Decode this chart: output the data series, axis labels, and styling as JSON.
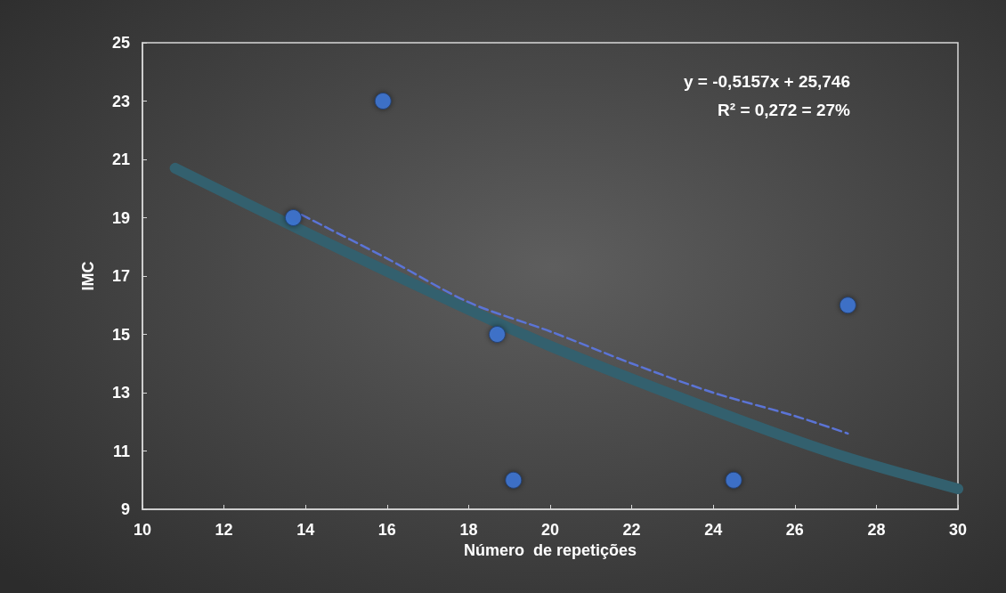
{
  "chart_data": {
    "type": "scatter",
    "xlabel": "Número  de repetições",
    "ylabel": "IMC",
    "xlim": [
      10,
      30
    ],
    "xticks": [
      10,
      12,
      14,
      16,
      18,
      20,
      22,
      24,
      26,
      28,
      30
    ],
    "ylim": [
      9,
      25
    ],
    "yticks": [
      9,
      11,
      13,
      15,
      17,
      19,
      21,
      23,
      25
    ],
    "grid": false,
    "annotations": [
      "y = -0,5157x + 25,746",
      "R² = 0,272 = 27%"
    ],
    "series": [
      {
        "type": "line",
        "color": "#33606e",
        "marker": "none",
        "line_style": "solid",
        "x": [
          10.8,
          14,
          17,
          20,
          24,
          27,
          30
        ],
        "values": [
          20.7,
          18.5,
          16.5,
          14.6,
          12.4,
          10.9,
          9.7
        ]
      },
      {
        "type": "line",
        "color": "#5b74d6",
        "marker": "none",
        "line_style": "dashed",
        "x": [
          13.9,
          16,
          18,
          20,
          22,
          24,
          26,
          27.3
        ],
        "values": [
          19.1,
          17.6,
          16.1,
          15.1,
          14.0,
          13.0,
          12.2,
          11.6
        ]
      },
      {
        "color": "#3f7be0",
        "marker": "circle",
        "x": [
          13.7,
          15.9,
          18.7,
          19.1,
          24.5,
          27.3
        ],
        "values": [
          19,
          23,
          15,
          10,
          10,
          16
        ]
      }
    ]
  }
}
